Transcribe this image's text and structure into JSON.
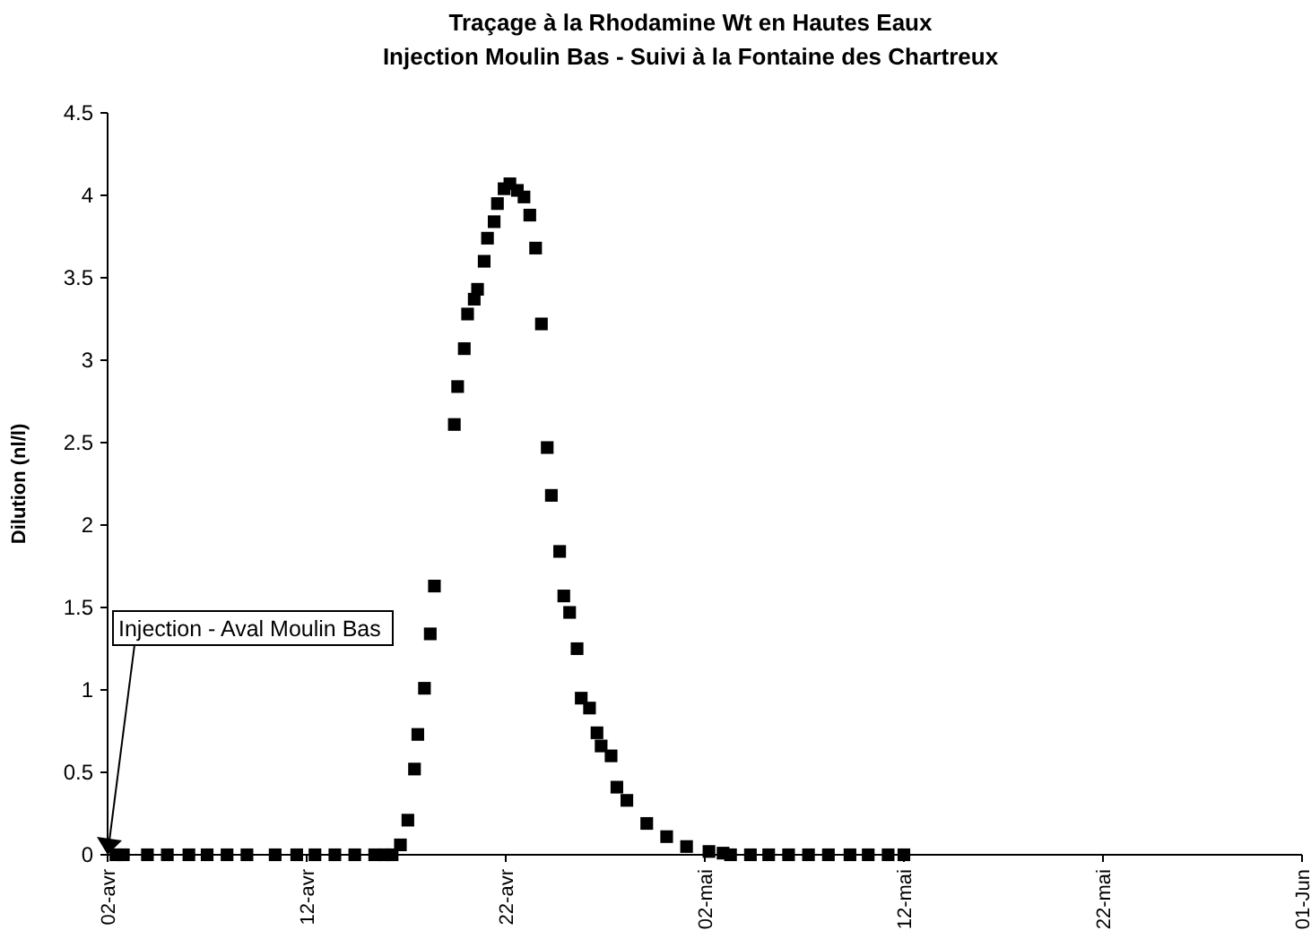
{
  "chart_data": {
    "type": "scatter",
    "title": "Traçage à la Rhodamine Wt en Hautes Eaux",
    "subtitle": "Injection Moulin Bas - Suivi à la Fontaine des Chartreux",
    "ylabel": "Dilution (nl/l)",
    "x": [
      "--04-02T10:00",
      "--04-02T19:00",
      "--04-04T00:00",
      "--04-05T00:00",
      "--04-06T02:00",
      "--04-07T00:00",
      "--04-08T00:00",
      "--04-09T00:00",
      "--04-10T10:00",
      "--04-11T12:00",
      "--04-12T10:00",
      "--04-13T10:00",
      "--04-14T10:00",
      "--04-15T10:00",
      "--04-15T22:00",
      "--04-16T07:00",
      "--04-16T17:00",
      "--04-17T02:00",
      "--04-17T10:00",
      "--04-17T14:00",
      "--04-17T22:00",
      "--04-18T05:00",
      "--04-18T10:00",
      "--04-19T10:00",
      "--04-19T14:00",
      "--04-19T22:00",
      "--04-20T02:00",
      "--04-20T10:00",
      "--04-20T14:00",
      "--04-20T22:00",
      "--04-21T02:00",
      "--04-21T10:00",
      "--04-21T14:00",
      "--04-21T22:00",
      "--04-22T05:00",
      "--04-22T14:00",
      "--04-22T22:00",
      "--04-23T05:00",
      "--04-23T12:00",
      "--04-23T19:00",
      "--04-24T02:00",
      "--04-24T07:00",
      "--04-24T17:00",
      "--04-24T22:00",
      "--04-25T05:00",
      "--04-25T14:00",
      "--04-25T19:00",
      "--04-26T05:00",
      "--04-26T14:00",
      "--04-26T19:00",
      "--04-27T07:00",
      "--04-27T14:00",
      "--04-28T02:00",
      "--04-29T02:00",
      "--04-30T02:00",
      "--05-01T02:00",
      "--05-02T05:00",
      "--05-02T22:00",
      "--05-03T07:00",
      "--05-04T07:00",
      "--05-05T05:00",
      "--05-06T05:00",
      "--05-07T05:00",
      "--05-08T05:00",
      "--05-09T07:00",
      "--05-10T05:00",
      "--05-11T05:00",
      "--05-12T00:00"
    ],
    "values": [
      0,
      0,
      0,
      0,
      0,
      0,
      0,
      0,
      0,
      0,
      0,
      0,
      0,
      0,
      0,
      0,
      0.06,
      0.21,
      0.52,
      0.73,
      1.01,
      1.34,
      1.63,
      2.61,
      2.84,
      3.07,
      3.28,
      3.37,
      3.43,
      3.6,
      3.74,
      3.84,
      3.95,
      4.04,
      4.07,
      4.03,
      3.99,
      3.88,
      3.68,
      3.22,
      2.47,
      2.18,
      1.84,
      1.57,
      1.47,
      1.25,
      0.95,
      0.89,
      0.74,
      0.66,
      0.6,
      0.41,
      0.33,
      0.19,
      0.11,
      0.05,
      0.02,
      0.01,
      0,
      0,
      0,
      0,
      0,
      0,
      0,
      0,
      0,
      0
    ],
    "color": "#000000",
    "marker": "square",
    "xlim": [
      "--04-02",
      "--06-01"
    ],
    "xticks": [
      {
        "value": "--04-02",
        "label": "02-avr"
      },
      {
        "value": "--04-12",
        "label": "12-avr"
      },
      {
        "value": "--04-22",
        "label": "22-avr"
      },
      {
        "value": "--05-02",
        "label": "02-mai"
      },
      {
        "value": "--05-12",
        "label": "12-mai"
      },
      {
        "value": "--05-22",
        "label": "22-mai"
      },
      {
        "value": "--06-01",
        "label": "01-Jun"
      }
    ],
    "ylim": [
      0,
      4.5
    ],
    "yticks": [
      0,
      0.5,
      1,
      1.5,
      2,
      2.5,
      3,
      3.5,
      4,
      4.5
    ],
    "annotations": [
      {
        "text": "Injection - Aval Moulin Bas",
        "x": "--04-02",
        "y": 0
      }
    ]
  }
}
